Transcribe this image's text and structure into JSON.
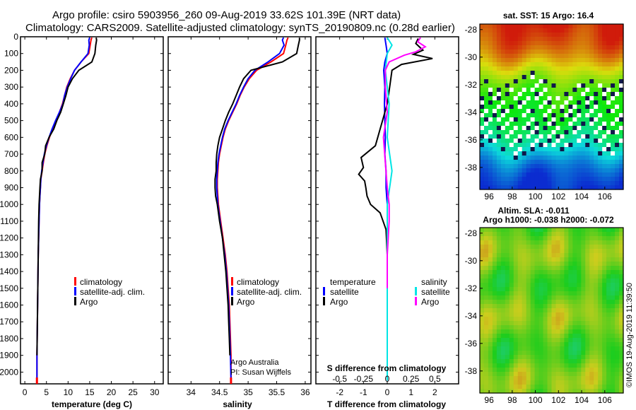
{
  "header": {
    "title_line1": "Argo profile: csiro 5903956_260 09-Aug-2019 33.62S 101.39E (NRT data)",
    "title_line2": "Climatology: CARS2009. Satellite-adjusted climatology: synTS_20190809.nc (0.28d earlier)"
  },
  "colors": {
    "climatology": "#ff0000",
    "satellite_adj": "#0000ff",
    "argo": "#000000",
    "satellite_salinity": "#00e5e5",
    "argo_salinity": "#ff00ff"
  },
  "chart_data": [
    {
      "type": "line",
      "panel": "temperature",
      "xlabel": "temperature (deg C)",
      "ylabel": "",
      "xlim": [
        -1,
        32
      ],
      "ylim": [
        2070,
        0
      ],
      "xticks": [
        0,
        5,
        10,
        15,
        20,
        25,
        30
      ],
      "xtick_labels": [
        "0",
        "5",
        "10",
        "15",
        "20",
        "25",
        "30"
      ],
      "yticks": [
        0,
        100,
        200,
        300,
        400,
        500,
        600,
        700,
        800,
        900,
        1000,
        1100,
        1200,
        1300,
        1400,
        1500,
        1600,
        1700,
        1800,
        1900,
        2000
      ],
      "ytick_labels": [
        "0",
        "100",
        "200",
        "300",
        "400",
        "500",
        "600",
        "700",
        "800",
        "900",
        "1000",
        "1100",
        "1200",
        "1300",
        "1400",
        "1500",
        "1600",
        "1700",
        "1800",
        "1900",
        "2000"
      ],
      "legend": [
        "climatology",
        "satellite-adj. clim.",
        "Argo"
      ],
      "series": [
        {
          "name": "climatology",
          "color": "#ff0000",
          "x": [
            15.5,
            15.3,
            15.1,
            14.8,
            13.0,
            11.5,
            10.5,
            9.7,
            9.2,
            8.7,
            8.0,
            7.2,
            6.4,
            5.7,
            5.1,
            4.6,
            4.3,
            4.0,
            3.7,
            3.6,
            3.5,
            3.4,
            3.3,
            3.2,
            3.1,
            3.05,
            3.0,
            2.95,
            2.9,
            2.85,
            2.8,
            2.8
          ],
          "y": [
            5,
            20,
            50,
            100,
            150,
            200,
            250,
            300,
            350,
            400,
            450,
            500,
            550,
            600,
            650,
            700,
            750,
            800,
            850,
            900,
            950,
            1000,
            1100,
            1200,
            1300,
            1400,
            1500,
            1600,
            1700,
            1800,
            1900,
            2050
          ]
        },
        {
          "name": "satellite-adj. clim.",
          "color": "#0000ff",
          "x": [
            15.0,
            14.8,
            14.9,
            14.6,
            13.0,
            11.5,
            10.6,
            9.8,
            9.2,
            8.8,
            8.0,
            7.1,
            6.3,
            5.6,
            5.0,
            4.5,
            4.2,
            3.9,
            3.7,
            3.6,
            3.5,
            3.4,
            3.3,
            3.2,
            3.1,
            3.05,
            3.0,
            2.95,
            2.9,
            2.85,
            2.8,
            2.8
          ],
          "y": [
            5,
            20,
            50,
            100,
            150,
            200,
            250,
            300,
            350,
            400,
            450,
            500,
            550,
            600,
            650,
            700,
            750,
            800,
            850,
            900,
            950,
            1000,
            1100,
            1200,
            1300,
            1400,
            1500,
            1600,
            1700,
            1800,
            1900,
            2050
          ]
        },
        {
          "name": "Argo",
          "color": "#000000",
          "x": [
            16.5,
            16.6,
            16.4,
            16.2,
            15.5,
            12.5,
            11.0,
            10.0,
            9.5,
            8.9,
            8.3,
            7.4,
            6.7,
            5.6,
            4.8,
            4.6,
            4.0,
            4.0,
            3.6,
            3.5,
            3.4,
            3.3,
            3.2,
            3.15,
            3.1,
            3.05,
            3.0,
            2.95,
            2.9,
            2.85,
            2.8
          ],
          "y": [
            5,
            20,
            50,
            100,
            150,
            200,
            250,
            300,
            350,
            400,
            450,
            500,
            550,
            600,
            650,
            700,
            750,
            800,
            850,
            900,
            950,
            1000,
            1100,
            1200,
            1300,
            1400,
            1500,
            1600,
            1700,
            1800,
            1900
          ]
        }
      ]
    },
    {
      "type": "line",
      "panel": "salinity",
      "xlabel": "salinity",
      "xlim": [
        33.6,
        36.1
      ],
      "ylim": [
        2070,
        0
      ],
      "xticks": [
        34,
        34.5,
        35,
        35.5,
        36
      ],
      "xtick_labels": [
        "34",
        "34.5",
        "35",
        "35.5",
        "36"
      ],
      "legend": [
        "climatology",
        "satellite-adj. clim.",
        "Argo"
      ],
      "annotation_line1": "Argo Australia",
      "annotation_line2": "PI: Susan Wijffels",
      "series": [
        {
          "name": "climatology",
          "color": "#ff0000",
          "x": [
            35.7,
            35.68,
            35.66,
            35.62,
            35.4,
            35.15,
            35.02,
            34.93,
            34.86,
            34.8,
            34.73,
            34.66,
            34.6,
            34.56,
            34.53,
            34.5,
            34.48,
            34.47,
            34.46,
            34.46,
            34.47,
            34.48,
            34.52,
            34.56,
            34.6,
            34.63,
            34.65,
            34.67,
            34.68,
            34.69,
            34.7,
            34.7
          ],
          "y": [
            5,
            20,
            50,
            100,
            150,
            200,
            250,
            300,
            350,
            400,
            450,
            500,
            550,
            600,
            650,
            700,
            750,
            800,
            850,
            900,
            950,
            1000,
            1100,
            1200,
            1300,
            1400,
            1500,
            1600,
            1700,
            1800,
            1900,
            2050
          ]
        },
        {
          "name": "satellite-adj. clim.",
          "color": "#0000ff",
          "x": [
            35.62,
            35.6,
            35.63,
            35.55,
            35.35,
            35.12,
            35.0,
            34.92,
            34.85,
            34.79,
            34.72,
            34.65,
            34.59,
            34.55,
            34.52,
            34.49,
            34.47,
            34.46,
            34.45,
            34.45,
            34.46,
            34.47,
            34.51,
            34.55,
            34.59,
            34.62,
            34.64,
            34.66,
            34.67,
            34.68,
            34.69,
            34.7
          ],
          "y": [
            5,
            20,
            50,
            100,
            150,
            200,
            250,
            300,
            350,
            400,
            450,
            500,
            550,
            600,
            650,
            700,
            750,
            800,
            850,
            900,
            950,
            1000,
            1100,
            1200,
            1300,
            1400,
            1500,
            1600,
            1700,
            1800,
            1900,
            2050
          ]
        },
        {
          "name": "Argo",
          "color": "#000000",
          "x": [
            35.9,
            35.9,
            35.88,
            35.85,
            35.6,
            35.05,
            34.92,
            34.85,
            34.79,
            34.73,
            34.66,
            34.6,
            34.55,
            34.5,
            34.47,
            34.45,
            34.44,
            34.44,
            34.42,
            34.42,
            34.43,
            34.46,
            34.5,
            34.55,
            34.58,
            34.61,
            34.63,
            34.65,
            34.66,
            34.67,
            34.68
          ],
          "y": [
            5,
            20,
            50,
            100,
            150,
            200,
            250,
            300,
            350,
            400,
            450,
            500,
            550,
            600,
            650,
            700,
            750,
            800,
            850,
            900,
            950,
            1000,
            1100,
            1200,
            1300,
            1400,
            1500,
            1600,
            1700,
            1800,
            1900
          ]
        }
      ]
    },
    {
      "type": "line",
      "panel": "difference",
      "xlabel": "T difference from climatology",
      "xlabel_top": "S difference from climatology",
      "xlim": [
        -3,
        3
      ],
      "ylim": [
        2070,
        0
      ],
      "xticks": [
        -2,
        -1,
        0,
        1,
        2
      ],
      "xtick_labels": [
        "-2",
        "-1",
        "0",
        "1",
        "2"
      ],
      "s_ticks": [
        -0.5,
        -0.25,
        0,
        0.25,
        0.5
      ],
      "s_tick_labels": [
        "-0.5",
        "-0.25",
        "0",
        "0.25",
        "0.5"
      ],
      "legend_left_title": "temperature",
      "legend_right_title": "salinity",
      "legend_left": [
        "satellite",
        "Argo"
      ],
      "legend_right": [
        "satellite",
        "Argo"
      ],
      "series": [
        {
          "name": "T satellite",
          "color": "#0000ff",
          "x": [
            -0.1,
            -0.05,
            0.0,
            -0.1,
            -0.15,
            -0.1,
            -0.12,
            -0.1,
            -0.08,
            -0.1,
            -0.05,
            -0.05,
            0.0,
            0.0,
            0.0,
            0.0,
            0.0,
            0.0,
            0.0
          ],
          "y": [
            5,
            50,
            100,
            150,
            200,
            300,
            400,
            500,
            600,
            700,
            800,
            900,
            1000,
            1100,
            1200,
            1400,
            1600,
            1800,
            2050
          ]
        },
        {
          "name": "T Argo",
          "color": "#000000",
          "x": [
            1.3,
            1.2,
            1.5,
            1.1,
            1.9,
            0.6,
            0.2,
            0.1,
            0.0,
            -0.2,
            -0.5,
            -1.1,
            -1.0,
            -1.2,
            -0.95,
            -0.9,
            -0.85,
            -0.7,
            -0.3,
            -0.05,
            0.0,
            0.0,
            0.0,
            0.0
          ],
          "y": [
            10,
            40,
            80,
            105,
            130,
            165,
            200,
            300,
            400,
            500,
            650,
            720,
            780,
            820,
            860,
            900,
            950,
            1000,
            1050,
            1150,
            1300,
            1500,
            1700,
            1900
          ]
        },
        {
          "name": "S satellite",
          "color": "#00e5e5",
          "x": [
            0.0,
            0.05,
            0.0,
            -0.02,
            0.02,
            0.0,
            0.05,
            0.0,
            0.0,
            0.0,
            0.0,
            0.0
          ],
          "y": [
            5,
            50,
            100,
            200,
            400,
            600,
            800,
            1000,
            1200,
            1500,
            1800,
            2050
          ]
        },
        {
          "name": "S Argo",
          "color": "#ff00ff",
          "x": [
            0.35,
            0.32,
            0.4,
            0.3,
            0.18,
            0.02,
            -0.02,
            -0.02,
            0.0,
            -0.04,
            -0.02,
            0.0,
            0.02,
            0.02,
            0.0,
            0.0
          ],
          "y": [
            5,
            30,
            60,
            90,
            110,
            150,
            200,
            300,
            450,
            600,
            750,
            900,
            1000,
            1100,
            1300,
            1500
          ]
        }
      ]
    },
    {
      "type": "heatmap",
      "panel": "sst_map",
      "title": "sat. SST: 15 Argo: 16.4",
      "xticks": [
        96,
        98,
        100,
        102,
        104,
        106
      ],
      "xtick_labels": [
        "96",
        "98",
        "100",
        "102",
        "104",
        "106"
      ],
      "yticks": [
        -28,
        -30,
        -32,
        -34,
        -36,
        -38
      ],
      "ytick_labels": [
        "-28",
        "-30",
        "-32",
        "-34",
        "-36",
        "-38"
      ],
      "xlim": [
        95.2,
        107.6
      ],
      "ylim": [
        -27.6,
        -39.6
      ]
    },
    {
      "type": "heatmap",
      "panel": "sla_map",
      "title_line1": "Altim. SLA: -0.011",
      "title_line2": "Argo h1000: -0.038 h2000: -0.072",
      "xticks": [
        96,
        98,
        100,
        102,
        104,
        106
      ],
      "xtick_labels": [
        "96",
        "98",
        "100",
        "102",
        "104",
        "106"
      ],
      "yticks": [
        -28,
        -30,
        -32,
        -34,
        -36,
        -38
      ],
      "ytick_labels": [
        "-28",
        "-30",
        "-32",
        "-34",
        "-36",
        "-38"
      ],
      "xlim": [
        95.2,
        107.6
      ],
      "ylim": [
        -27.6,
        -39.6
      ]
    }
  ],
  "footer": {
    "credit": "©IMOS 19-Aug-2019 11:39:50"
  }
}
